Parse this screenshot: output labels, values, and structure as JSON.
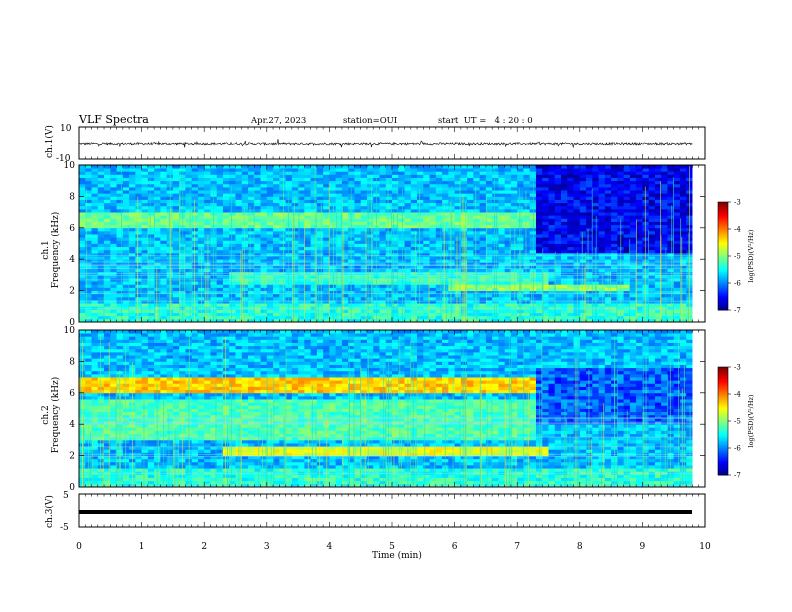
{
  "header": {
    "title": "VLF Spectra",
    "date": "Apr.27, 2023",
    "station": "station=OUI",
    "start": "start  UT =   4 : 20 : 0"
  },
  "chart_data": [
    {
      "type": "line",
      "panel": "ch1-waveform",
      "ylabel": "ch.1(V)",
      "ylim": [
        -10,
        10
      ],
      "yticks": [
        "10",
        "-10"
      ],
      "xlim": [
        0,
        10
      ],
      "x_end": 9.8,
      "baseline": -0.5,
      "noise_amplitude": 1.4
    },
    {
      "type": "heatmap",
      "panel": "ch1-spectrogram",
      "ylabel": "ch.1\nFrequency (kHz)",
      "ylim": [
        0,
        10
      ],
      "yticks": [
        "0",
        "2",
        "4",
        "6",
        "8",
        "10"
      ],
      "xlim": [
        0,
        10
      ],
      "x_end": 9.8,
      "zlim": [
        -7,
        -3
      ],
      "colorbar_label": "log(PSD)(V²/Hz)",
      "colorbar_ticks": [
        "-3",
        "-4",
        "-5",
        "-6",
        "-7"
      ],
      "features": [
        {
          "kind": "band",
          "f_low": 6.0,
          "f_high": 6.9,
          "t_start": 0,
          "t_end": 7.3,
          "level": -5.1
        },
        {
          "kind": "band",
          "f_low": 2.0,
          "f_high": 2.4,
          "t_start": 5.9,
          "t_end": 8.8,
          "level": -4.9
        },
        {
          "kind": "band",
          "f_low": 2.5,
          "f_high": 3.3,
          "t_start": 2.4,
          "t_end": 7.5,
          "level": -5.3
        },
        {
          "kind": "dark",
          "f_low": 4.5,
          "f_high": 10,
          "t_start": 7.3,
          "t_end": 9.8,
          "level": -6.6
        }
      ]
    },
    {
      "type": "heatmap",
      "panel": "ch2-spectrogram",
      "ylabel": "ch.2\nFrequency (kHz)",
      "ylim": [
        0,
        10
      ],
      "yticks": [
        "0",
        "2",
        "4",
        "6",
        "8",
        "10"
      ],
      "xlim": [
        0,
        10
      ],
      "x_end": 9.8,
      "zlim": [
        -7,
        -3
      ],
      "colorbar_label": "log(PSD)(V²/Hz)",
      "colorbar_ticks": [
        "-3",
        "-4",
        "-5",
        "-6",
        "-7"
      ],
      "features": [
        {
          "kind": "band",
          "f_low": 5.9,
          "f_high": 7.0,
          "t_start": 0,
          "t_end": 7.3,
          "level": -4.3
        },
        {
          "kind": "band",
          "f_low": 2.0,
          "f_high": 2.6,
          "t_start": 2.3,
          "t_end": 7.5,
          "level": -4.6
        },
        {
          "kind": "band",
          "f_low": 3.0,
          "f_high": 5.5,
          "t_start": 0,
          "t_end": 7.3,
          "level": -5.2
        },
        {
          "kind": "dark",
          "f_low": 4.0,
          "f_high": 7.5,
          "t_start": 7.3,
          "t_end": 9.8,
          "level": -6.2
        }
      ]
    },
    {
      "type": "line",
      "panel": "ch3-waveform",
      "ylabel": "ch.3(V)",
      "ylim": [
        -5,
        5
      ],
      "yticks": [
        "5",
        "-5"
      ],
      "xlim": [
        0,
        10
      ],
      "x_end": 9.8,
      "baseline": -0.5
    }
  ],
  "xaxis": {
    "label": "Time (min)",
    "ticks": [
      "0",
      "1",
      "2",
      "3",
      "4",
      "5",
      "6",
      "7",
      "8",
      "9",
      "10"
    ]
  }
}
